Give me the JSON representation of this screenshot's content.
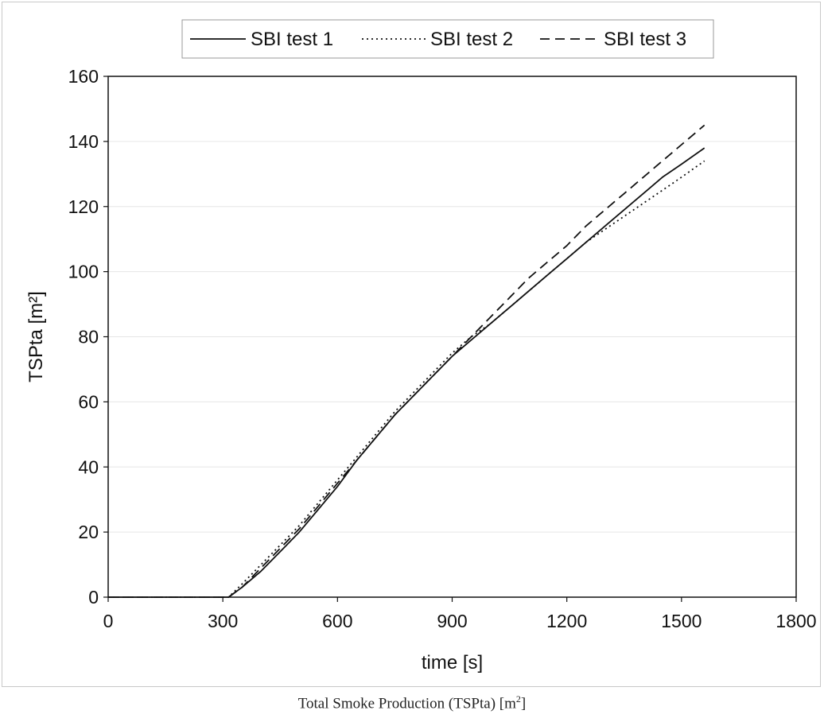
{
  "caption": {
    "text": "Total Smoke Production (TSPta) [m",
    "sup": "2",
    "end": "]"
  },
  "chart_data": {
    "type": "line",
    "title": "",
    "xlabel": "time [s]",
    "ylabel": "TSPta [m²]",
    "xlim": [
      0,
      1800
    ],
    "ylim": [
      0,
      160
    ],
    "xticks": [
      0,
      300,
      600,
      900,
      1200,
      1500,
      1800
    ],
    "yticks": [
      0,
      20,
      40,
      60,
      80,
      100,
      120,
      140,
      160
    ],
    "grid": true,
    "legend_position": "top",
    "series": [
      {
        "name": "SBI test 1",
        "style": "solid",
        "x": [
          0,
          300,
          315,
          350,
          400,
          450,
          500,
          550,
          600,
          650,
          700,
          750,
          800,
          850,
          900,
          950,
          1000,
          1050,
          1100,
          1150,
          1200,
          1250,
          1300,
          1350,
          1400,
          1450,
          1500,
          1560
        ],
        "y": [
          0,
          0,
          0,
          3,
          8,
          14,
          20,
          27,
          34,
          42,
          49,
          56,
          62,
          68,
          74,
          79,
          84,
          89,
          94,
          99,
          104,
          109,
          114,
          119,
          124,
          129,
          133,
          138
        ]
      },
      {
        "name": "SBI test 2",
        "style": "dotted",
        "x": [
          0,
          300,
          315,
          350,
          400,
          450,
          500,
          550,
          600,
          650,
          700,
          750,
          800,
          850,
          900,
          950,
          1000,
          1050,
          1100,
          1150,
          1200,
          1250,
          1300,
          1350,
          1400,
          1450,
          1500,
          1560
        ],
        "y": [
          0,
          0,
          0,
          4,
          10,
          16,
          22,
          29,
          36,
          43,
          50,
          57,
          63,
          69,
          75,
          80,
          84,
          89,
          94,
          99,
          104,
          109,
          113,
          117,
          121,
          125,
          129,
          134
        ]
      },
      {
        "name": "SBI test 3",
        "style": "dashed",
        "x": [
          0,
          300,
          315,
          350,
          400,
          450,
          500,
          550,
          600,
          650,
          700,
          750,
          800,
          850,
          900,
          950,
          1000,
          1050,
          1100,
          1150,
          1200,
          1250,
          1300,
          1350,
          1400,
          1450,
          1500,
          1560
        ],
        "y": [
          0,
          0,
          0,
          3,
          9,
          15,
          21,
          28,
          35,
          42,
          49,
          56,
          62,
          68,
          74,
          80,
          86,
          92,
          98,
          103,
          108,
          114,
          119,
          124,
          129,
          134,
          139,
          145
        ]
      }
    ]
  }
}
